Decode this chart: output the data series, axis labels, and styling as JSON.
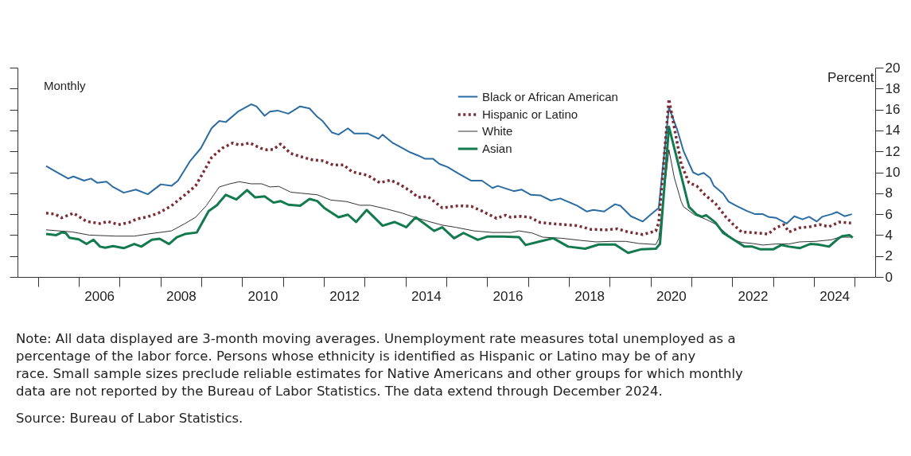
{
  "chart_data": {
    "type": "line",
    "ylabel": "Percent",
    "annotations": [
      "Monthly",
      "Note: All data displayed are 3-month moving averages. Unemployment rate measures total unemployed as a percentage of the labor force. Persons whose ethnicity is identified as Hispanic or Latino may be of any race. Small sample sizes preclude reliable estimates for Native Americans and other groups for which monthly data are not reported by the Bureau of Labor Statistics. The data extend through December 2024.",
      "Source: Bureau of Labor Statistics."
    ],
    "xlim": [
      2004.5,
      2025.5
    ],
    "xticks": [
      {
        "value": 2005,
        "label": null
      },
      {
        "value": 2006,
        "label": null
      },
      {
        "value": 2006.5,
        "label": "2006"
      },
      {
        "value": 2007,
        "label": null
      },
      {
        "value": 2008,
        "label": null
      },
      {
        "value": 2008.5,
        "label": "2008"
      },
      {
        "value": 2009,
        "label": null
      },
      {
        "value": 2010,
        "label": null
      },
      {
        "value": 2010.5,
        "label": "2010"
      },
      {
        "value": 2011,
        "label": null
      },
      {
        "value": 2012,
        "label": null
      },
      {
        "value": 2012.5,
        "label": "2012"
      },
      {
        "value": 2013,
        "label": null
      },
      {
        "value": 2014,
        "label": null
      },
      {
        "value": 2014.5,
        "label": "2014"
      },
      {
        "value": 2015,
        "label": null
      },
      {
        "value": 2016,
        "label": null
      },
      {
        "value": 2016.5,
        "label": "2016"
      },
      {
        "value": 2017,
        "label": null
      },
      {
        "value": 2018,
        "label": null
      },
      {
        "value": 2018.5,
        "label": "2018"
      },
      {
        "value": 2019,
        "label": null
      },
      {
        "value": 2020,
        "label": null
      },
      {
        "value": 2020.5,
        "label": "2020"
      },
      {
        "value": 2021,
        "label": null
      },
      {
        "value": 2022,
        "label": null
      },
      {
        "value": 2022.5,
        "label": "2022"
      },
      {
        "value": 2023,
        "label": null
      },
      {
        "value": 2024,
        "label": null
      },
      {
        "value": 2024.5,
        "label": "2024"
      },
      {
        "value": 2025,
        "label": null
      }
    ],
    "ylim": [
      0,
      20
    ],
    "yticks": [
      0,
      2,
      4,
      6,
      8,
      10,
      12,
      14,
      16,
      18,
      20
    ],
    "grid": false,
    "legend": "top right",
    "marker": "none",
    "series": [
      {
        "name": "Black or African American",
        "color": "#2b6ca3",
        "line_style": "solid",
        "x": [
          2005.2,
          2005.42,
          2005.74,
          2005.87,
          2006.13,
          2006.3,
          2006.45,
          2006.68,
          2006.84,
          2007.1,
          2007.4,
          2007.69,
          2008.01,
          2008.27,
          2008.43,
          2008.73,
          2008.99,
          2009.25,
          2009.44,
          2009.6,
          2009.9,
          2010.22,
          2010.35,
          2010.55,
          2010.68,
          2010.87,
          2011.13,
          2011.42,
          2011.65,
          2011.84,
          2011.97,
          2012.2,
          2012.36,
          2012.59,
          2012.75,
          2013.08,
          2013.34,
          2013.44,
          2013.69,
          2014.12,
          2014.31,
          2014.47,
          2014.67,
          2014.83,
          2015.03,
          2015.29,
          2015.61,
          2015.87,
          2016.13,
          2016.26,
          2016.65,
          2016.84,
          2017.07,
          2017.3,
          2017.56,
          2017.79,
          2018.21,
          2018.44,
          2018.6,
          2018.86,
          2019.13,
          2019.26,
          2019.52,
          2019.81,
          2020.0,
          2020.2,
          2020.45,
          2020.65,
          2020.81,
          2021.04,
          2021.17,
          2021.3,
          2021.46,
          2021.55,
          2021.78,
          2021.91,
          2022.1,
          2022.36,
          2022.56,
          2022.75,
          2022.88,
          2023.07,
          2023.33,
          2023.52,
          2023.72,
          2023.88,
          2024.07,
          2024.2,
          2024.43,
          2024.56,
          2024.75,
          2024.93
        ],
        "values": [
          10.6,
          10.1,
          9.4,
          9.6,
          9.2,
          9.4,
          9.0,
          9.1,
          8.6,
          8.05,
          8.35,
          7.9,
          8.85,
          8.7,
          9.2,
          11.1,
          12.3,
          14.2,
          14.9,
          14.8,
          15.8,
          16.5,
          16.3,
          15.4,
          15.8,
          15.9,
          15.6,
          16.3,
          16.1,
          15.3,
          14.9,
          13.8,
          13.6,
          14.2,
          13.7,
          13.7,
          13.2,
          13.6,
          12.8,
          11.9,
          11.6,
          11.3,
          11.3,
          10.8,
          10.5,
          9.9,
          9.2,
          9.2,
          8.5,
          8.7,
          8.2,
          8.35,
          7.85,
          7.8,
          7.3,
          7.5,
          6.8,
          6.25,
          6.4,
          6.25,
          6.95,
          6.8,
          5.8,
          5.3,
          5.95,
          6.6,
          16.2,
          14.1,
          12.0,
          10.0,
          9.75,
          9.95,
          9.45,
          8.7,
          7.95,
          7.2,
          6.8,
          6.3,
          6.0,
          6.0,
          5.75,
          5.65,
          5.1,
          5.8,
          5.5,
          5.75,
          5.3,
          5.75,
          6.0,
          6.2,
          5.8,
          6.0
        ]
      },
      {
        "name": "Hispanic or Latino",
        "color": "#7b2d35",
        "line_style": "dotted",
        "x": [
          2005.2,
          2005.42,
          2005.58,
          2005.87,
          2006.19,
          2006.52,
          2006.71,
          2006.97,
          2007.23,
          2007.43,
          2007.69,
          2007.95,
          2008.27,
          2008.6,
          2008.86,
          2009.05,
          2009.25,
          2009.51,
          2009.77,
          2009.93,
          2010.19,
          2010.45,
          2010.61,
          2010.77,
          2010.94,
          2011.19,
          2011.52,
          2011.71,
          2011.97,
          2012.23,
          2012.49,
          2012.69,
          2013.08,
          2013.37,
          2013.63,
          2013.86,
          2014.12,
          2014.31,
          2014.54,
          2014.9,
          2015.29,
          2015.61,
          2015.87,
          2016.23,
          2016.45,
          2016.58,
          2016.81,
          2017.04,
          2017.3,
          2017.69,
          2018.21,
          2018.53,
          2018.92,
          2019.19,
          2019.45,
          2019.81,
          2020.13,
          2020.2,
          2020.45,
          2020.58,
          2020.75,
          2020.94,
          2021.13,
          2021.33,
          2021.59,
          2021.84,
          2022.04,
          2022.23,
          2022.62,
          2022.88,
          2023.07,
          2023.26,
          2023.39,
          2023.65,
          2023.91,
          2024.14,
          2024.37,
          2024.62,
          2024.91
        ],
        "values": [
          6.1,
          6.0,
          5.65,
          6.1,
          5.3,
          5.1,
          5.3,
          5.0,
          5.2,
          5.55,
          5.75,
          6.1,
          6.8,
          7.85,
          8.7,
          10.0,
          11.4,
          12.3,
          12.8,
          12.6,
          12.8,
          12.3,
          12.15,
          12.2,
          12.7,
          11.8,
          11.4,
          11.2,
          11.1,
          10.7,
          10.7,
          10.05,
          9.7,
          9.0,
          9.25,
          8.85,
          8.2,
          7.6,
          7.7,
          6.6,
          6.8,
          6.75,
          6.3,
          5.6,
          5.9,
          5.7,
          5.8,
          5.7,
          5.2,
          5.05,
          4.9,
          4.55,
          4.5,
          4.6,
          4.3,
          4.05,
          4.4,
          5.2,
          17.0,
          14.3,
          10.8,
          9.0,
          8.7,
          7.85,
          7.0,
          5.75,
          4.95,
          4.3,
          4.2,
          4.1,
          4.7,
          5.0,
          4.3,
          4.7,
          4.8,
          5.0,
          4.8,
          5.25,
          5.15
        ]
      },
      {
        "name": "White",
        "color": "#333333",
        "line_style": "solid",
        "x": [
          2005.2,
          2005.84,
          2006.26,
          2006.91,
          2007.36,
          2007.69,
          2008.27,
          2008.6,
          2008.86,
          2009.12,
          2009.44,
          2009.7,
          2009.93,
          2010.22,
          2010.48,
          2010.68,
          2010.9,
          2011.19,
          2011.45,
          2011.84,
          2012.17,
          2012.56,
          2012.88,
          2013.14,
          2013.53,
          2013.92,
          2014.18,
          2014.57,
          2014.9,
          2015.22,
          2015.68,
          2016.13,
          2016.58,
          2016.78,
          2017.1,
          2017.36,
          2017.82,
          2018.27,
          2018.66,
          2019.05,
          2019.39,
          2019.71,
          2020.13,
          2020.2,
          2020.45,
          2020.58,
          2020.75,
          2020.81,
          2021.07,
          2021.33,
          2021.59,
          2021.84,
          2022.04,
          2022.23,
          2022.49,
          2022.75,
          2023.07,
          2023.39,
          2023.65,
          2024.04,
          2024.43,
          2024.62,
          2024.91
        ],
        "values": [
          4.5,
          4.3,
          4.0,
          3.9,
          3.9,
          4.1,
          4.4,
          5.1,
          5.7,
          6.8,
          8.6,
          8.9,
          9.1,
          8.9,
          8.9,
          8.6,
          8.65,
          8.1,
          8.0,
          7.85,
          7.35,
          7.2,
          6.85,
          6.85,
          6.5,
          6.1,
          5.75,
          5.3,
          4.95,
          4.75,
          4.4,
          4.25,
          4.25,
          4.4,
          4.2,
          3.8,
          3.7,
          3.5,
          3.35,
          3.4,
          3.4,
          3.2,
          3.1,
          3.65,
          12.15,
          9.5,
          7.2,
          6.7,
          5.95,
          5.55,
          5.05,
          4.2,
          3.55,
          3.3,
          3.2,
          3.05,
          3.15,
          3.15,
          3.35,
          3.4,
          3.55,
          3.8,
          3.8
        ]
      },
      {
        "name": "Asian",
        "color": "#137a4f",
        "line_style": "solid",
        "x": [
          2005.2,
          2005.45,
          2005.58,
          2005.68,
          2005.77,
          2006.0,
          2006.19,
          2006.36,
          2006.52,
          2006.65,
          2006.84,
          2007.1,
          2007.36,
          2007.53,
          2007.79,
          2007.98,
          2008.21,
          2008.4,
          2008.6,
          2008.89,
          2009.18,
          2009.38,
          2009.6,
          2009.86,
          2010.12,
          2010.32,
          2010.55,
          2010.77,
          2010.94,
          2011.13,
          2011.42,
          2011.65,
          2011.84,
          2012.01,
          2012.36,
          2012.59,
          2012.79,
          2013.05,
          2013.44,
          2013.73,
          2014.02,
          2014.25,
          2014.7,
          2014.9,
          2015.19,
          2015.42,
          2015.77,
          2016.0,
          2016.39,
          2016.78,
          2016.94,
          2017.3,
          2017.62,
          2017.98,
          2018.4,
          2018.73,
          2019.13,
          2019.45,
          2019.78,
          2020.13,
          2020.23,
          2020.45,
          2020.65,
          2020.94,
          2021.13,
          2021.26,
          2021.36,
          2021.59,
          2021.78,
          2022.1,
          2022.3,
          2022.49,
          2022.68,
          2023.01,
          2023.2,
          2023.39,
          2023.65,
          2023.91,
          2024.1,
          2024.37,
          2024.59,
          2024.69,
          2024.87,
          2024.95
        ],
        "values": [
          4.1,
          4.0,
          4.25,
          4.2,
          3.75,
          3.6,
          3.15,
          3.55,
          2.9,
          2.8,
          2.95,
          2.75,
          3.15,
          2.9,
          3.55,
          3.65,
          3.15,
          3.8,
          4.1,
          4.25,
          6.3,
          6.85,
          7.85,
          7.4,
          8.3,
          7.6,
          7.7,
          7.1,
          7.25,
          6.9,
          6.8,
          7.45,
          7.25,
          6.6,
          5.7,
          5.95,
          5.25,
          6.4,
          4.9,
          5.25,
          4.75,
          5.7,
          4.4,
          4.75,
          3.7,
          4.2,
          3.55,
          3.85,
          3.85,
          3.8,
          3.05,
          3.4,
          3.7,
          2.9,
          2.7,
          3.1,
          3.1,
          2.3,
          2.65,
          2.7,
          3.15,
          14.35,
          11.25,
          6.7,
          5.95,
          5.75,
          5.9,
          5.2,
          4.2,
          3.4,
          2.9,
          2.9,
          2.65,
          2.65,
          3.05,
          2.9,
          2.75,
          3.15,
          3.1,
          2.9,
          3.65,
          3.9,
          4.0,
          3.75
        ]
      }
    ]
  }
}
